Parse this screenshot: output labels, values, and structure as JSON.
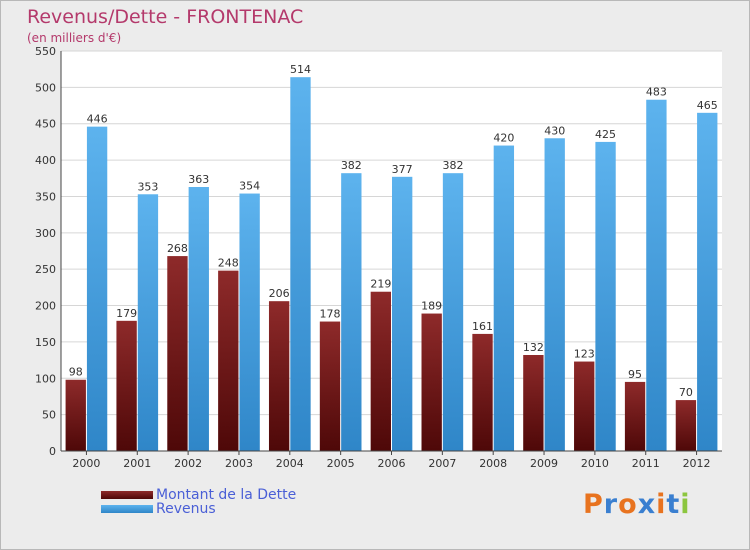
{
  "header": {
    "title": "Revenus/Dette - FRONTENAC",
    "subtitle": "(en milliers d'€)"
  },
  "chart_data": {
    "type": "bar",
    "title": "Revenus/Dette - FRONTENAC",
    "ylabel": "(en milliers d'€)",
    "xlabel": "",
    "ylim": [
      0,
      550
    ],
    "yticks": [
      0,
      50,
      100,
      150,
      200,
      250,
      300,
      350,
      400,
      450,
      500,
      550
    ],
    "grid": true,
    "legend_position": "bottom-left",
    "categories": [
      "2000",
      "2001",
      "2002",
      "2003",
      "2004",
      "2005",
      "2006",
      "2007",
      "2008",
      "2009",
      "2010",
      "2011",
      "2012"
    ],
    "series": [
      {
        "name": "Montant de la Dette",
        "color": "#7a1a1a",
        "values": [
          98,
          179,
          268,
          248,
          206,
          178,
          219,
          189,
          161,
          132,
          123,
          95,
          70
        ]
      },
      {
        "name": "Revenus",
        "color": "#4ea6e6",
        "values": [
          446,
          353,
          363,
          354,
          514,
          382,
          377,
          382,
          420,
          430,
          425,
          483,
          465
        ]
      }
    ]
  },
  "legend": {
    "items": [
      "Montant de la Dette",
      "Revenus"
    ]
  },
  "branding": {
    "logo_text": "Proxiti",
    "logo_colors": [
      "#e8731f",
      "#3a7fd0",
      "#e8731f",
      "#3a7fd0",
      "#e8731f",
      "#3a7fd0",
      "#8cc63f"
    ]
  }
}
